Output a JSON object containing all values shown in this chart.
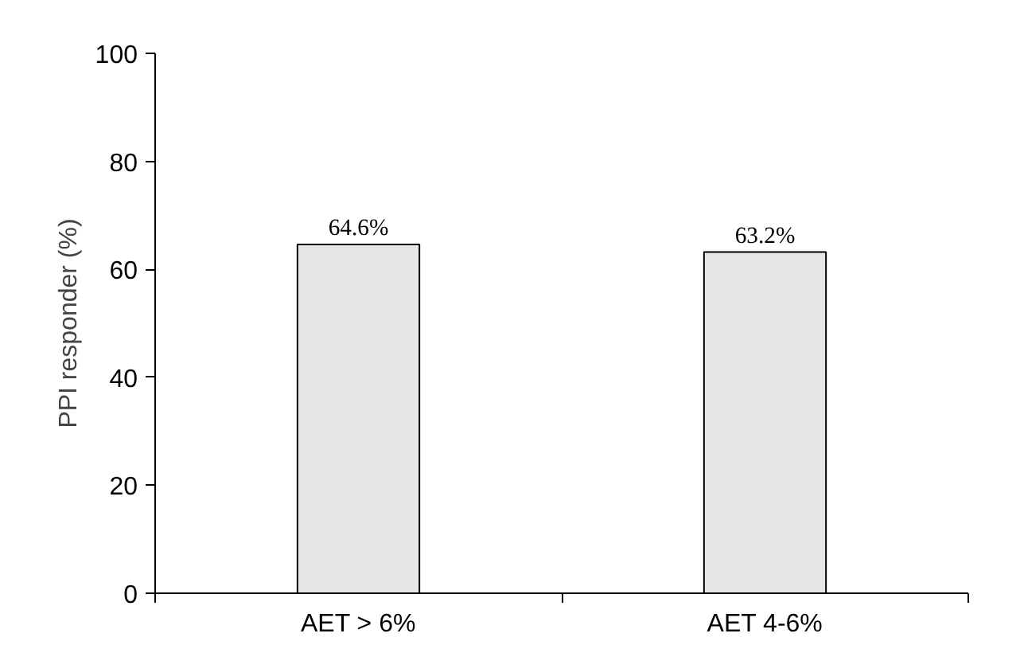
{
  "chart_data": {
    "type": "bar",
    "ylabel": "PPI responder (%)",
    "categories": [
      "AET > 6%",
      "AET 4-6%"
    ],
    "values": [
      64.6,
      63.2
    ],
    "value_labels": [
      "64.6%",
      "63.2%"
    ],
    "color": "#e6e6e6",
    "ylim": [
      0,
      100
    ],
    "yticks": [
      0,
      20,
      40,
      60,
      80,
      100
    ],
    "grid": false
  }
}
